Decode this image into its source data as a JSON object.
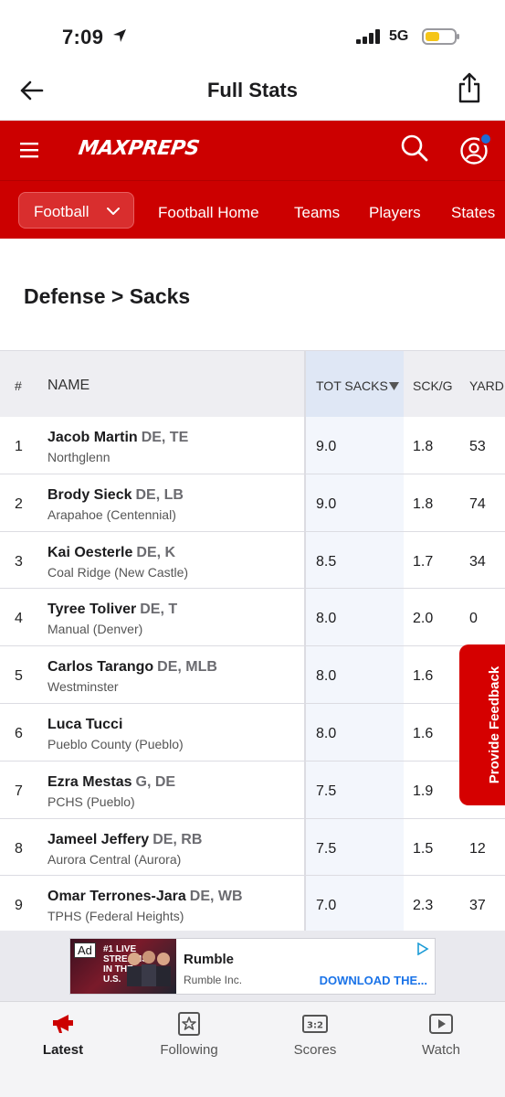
{
  "status_bar": {
    "time": "7:09",
    "network": "5G"
  },
  "header": {
    "title": "Full Stats"
  },
  "brand": {
    "logo_text": "MAXPREPS"
  },
  "sport_nav": {
    "selected_sport": "Football",
    "links": [
      "Football Home",
      "Teams",
      "Players",
      "States"
    ]
  },
  "section": {
    "title": "Defense > Sacks"
  },
  "table": {
    "columns": {
      "rank": "#",
      "name": "NAME",
      "tot_sacks": "TOT SACKS",
      "sck_g": "SCK/G",
      "yards": "YARD"
    },
    "rows": [
      {
        "rank": "1",
        "name": "Jacob Martin",
        "pos": "DE, TE",
        "school": "Northglenn",
        "tot": "9.0",
        "sckg": "1.8",
        "yds": "53"
      },
      {
        "rank": "2",
        "name": "Brody Sieck",
        "pos": "DE, LB",
        "school": "Arapahoe (Centennial)",
        "tot": "9.0",
        "sckg": "1.8",
        "yds": "74"
      },
      {
        "rank": "3",
        "name": "Kai Oesterle",
        "pos": "DE, K",
        "school": "Coal Ridge (New Castle)",
        "tot": "8.5",
        "sckg": "1.7",
        "yds": "34"
      },
      {
        "rank": "4",
        "name": "Tyree Toliver",
        "pos": "DE, T",
        "school": "Manual (Denver)",
        "tot": "8.0",
        "sckg": "2.0",
        "yds": "0"
      },
      {
        "rank": "5",
        "name": "Carlos Tarango",
        "pos": "DE, MLB",
        "school": "Westminster",
        "tot": "8.0",
        "sckg": "1.6",
        "yds": ""
      },
      {
        "rank": "6",
        "name": "Luca Tucci",
        "pos": "",
        "school": "Pueblo County (Pueblo)",
        "tot": "8.0",
        "sckg": "1.6",
        "yds": ""
      },
      {
        "rank": "7",
        "name": "Ezra Mestas",
        "pos": "G, DE",
        "school": "PCHS (Pueblo)",
        "tot": "7.5",
        "sckg": "1.9",
        "yds": ""
      },
      {
        "rank": "8",
        "name": "Jameel Jeffery",
        "pos": "DE, RB",
        "school": "Aurora Central (Aurora)",
        "tot": "7.5",
        "sckg": "1.5",
        "yds": "12"
      },
      {
        "rank": "9",
        "name": "Omar Terrones-Jara",
        "pos": "DE, WB",
        "school": "TPHS (Federal Heights)",
        "tot": "7.0",
        "sckg": "2.3",
        "yds": "37"
      }
    ]
  },
  "feedback": {
    "label": "Provide Feedback"
  },
  "ad": {
    "badge": "Ad",
    "thumb_text": "#1 LIVE STREAMS IN THE U.S.",
    "title": "Rumble",
    "advertiser": "Rumble Inc.",
    "cta": "DOWNLOAD THE..."
  },
  "tab_bar": {
    "tabs": [
      {
        "label": "Latest",
        "icon": "megaphone-icon"
      },
      {
        "label": "Following",
        "icon": "star-bookmark-icon"
      },
      {
        "label": "Scores",
        "icon": "scoreboard-icon"
      },
      {
        "label": "Watch",
        "icon": "play-icon"
      }
    ],
    "active": "Latest"
  },
  "colors": {
    "brand_red": "#cc0000",
    "accent_blue": "#1e6bd6",
    "sort_column_bg": "#dfe7f5"
  }
}
